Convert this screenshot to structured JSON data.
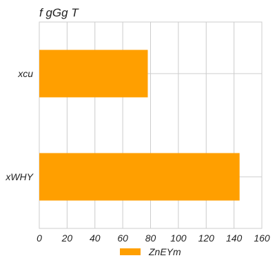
{
  "chart_data": {
    "type": "bar",
    "orientation": "horizontal",
    "title": "f  gGg T",
    "categories": [
      "xcu",
      "xWHY"
    ],
    "series": [
      {
        "name": "ZnEYm",
        "values": [
          78,
          144
        ],
        "color": "#ff9f00"
      }
    ],
    "xlim": [
      0,
      160
    ],
    "xticks": [
      0,
      20,
      40,
      60,
      80,
      100,
      120,
      140,
      160
    ],
    "grid": true,
    "legend": "bottom-center"
  }
}
